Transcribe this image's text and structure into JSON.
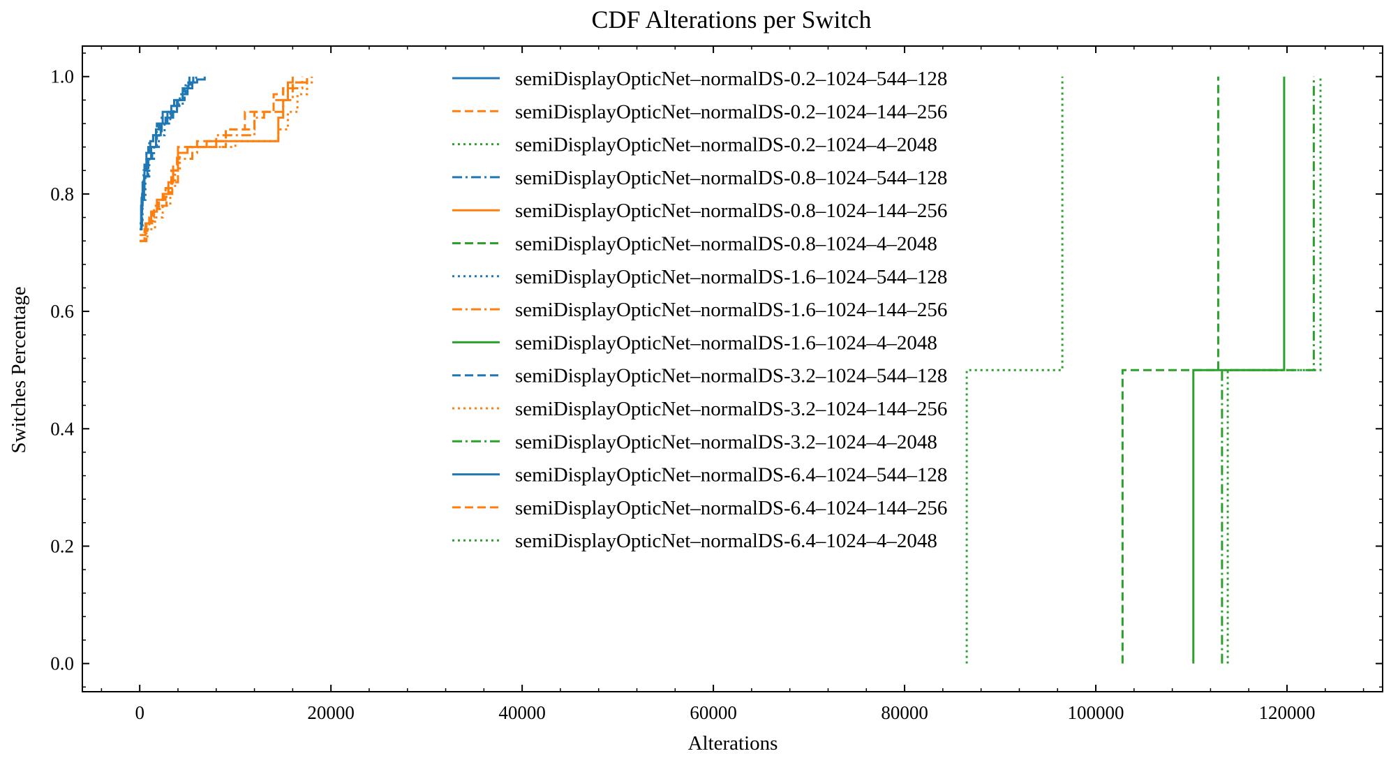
{
  "chart_data": {
    "type": "line",
    "title": "CDF Alterations per Switch",
    "xlabel": "Alterations",
    "ylabel": "Switches Percentage",
    "xlim": [
      -6000,
      130000
    ],
    "ylim": [
      -0.048,
      1.052
    ],
    "xticks": [
      0,
      20000,
      40000,
      60000,
      80000,
      100000,
      120000
    ],
    "xtick_labels": [
      "0",
      "20000",
      "40000",
      "60000",
      "80000",
      "100000",
      "120000"
    ],
    "yticks": [
      0.0,
      0.2,
      0.4,
      0.6,
      0.8,
      1.0
    ],
    "ytick_labels": [
      "0.0",
      "0.2",
      "0.4",
      "0.6",
      "0.8",
      "1.0"
    ],
    "grid": false,
    "legend_position": "top-center",
    "colors": {
      "blue": "#1f77b4",
      "orange": "#ff7f0e",
      "green": "#2ca02c"
    },
    "series": [
      {
        "name": "semiDisplayOpticNet–normalDS-0.2–1024–544–128",
        "color": "#1f77b4",
        "style": "solid",
        "x": [
          0,
          150,
          300,
          500,
          700,
          900,
          1100,
          1400,
          1700,
          2000,
          2400,
          2800,
          3300,
          4000,
          4500,
          5000,
          5500,
          6000,
          6800
        ],
        "y": [
          0.74,
          0.78,
          0.82,
          0.85,
          0.87,
          0.88,
          0.89,
          0.9,
          0.91,
          0.92,
          0.94,
          0.94,
          0.95,
          0.96,
          0.97,
          0.98,
          0.99,
          0.995,
          1.0
        ]
      },
      {
        "name": "semiDisplayOpticNet–normalDS-0.2–1024–144–256",
        "color": "#ff7f0e",
        "style": "dashed",
        "x": [
          0,
          500,
          1000,
          1500,
          2000,
          2500,
          3000,
          3500,
          4000,
          6000,
          9000,
          11000,
          14000,
          15000,
          16000,
          17000
        ],
        "y": [
          0.72,
          0.74,
          0.76,
          0.78,
          0.79,
          0.8,
          0.82,
          0.85,
          0.88,
          0.89,
          0.91,
          0.94,
          0.96,
          0.98,
          0.99,
          1.0
        ]
      },
      {
        "name": "semiDisplayOpticNet–normalDS-0.2–1024–4–2048",
        "color": "#2ca02c",
        "style": "dotted",
        "x": [
          86500,
          86500,
          96500,
          96500
        ],
        "y": [
          0.0,
          0.5,
          0.5,
          1.0
        ]
      },
      {
        "name": "semiDisplayOpticNet–normalDS-0.8–1024–544–128",
        "color": "#1f77b4",
        "style": "dashdot",
        "x": [
          0,
          200,
          400,
          700,
          1000,
          1400,
          1800,
          2300,
          2900,
          3600,
          4200,
          4800,
          5200
        ],
        "y": [
          0.75,
          0.8,
          0.84,
          0.87,
          0.89,
          0.9,
          0.92,
          0.93,
          0.94,
          0.96,
          0.97,
          0.99,
          1.0
        ]
      },
      {
        "name": "semiDisplayOpticNet–normalDS-0.8–1024–144–256",
        "color": "#ff7f0e",
        "style": "solid",
        "x": [
          0,
          600,
          1200,
          1800,
          2400,
          3000,
          3500,
          4000,
          5000,
          7000,
          12000,
          14500,
          15000,
          15500,
          16000
        ],
        "y": [
          0.73,
          0.75,
          0.77,
          0.79,
          0.8,
          0.82,
          0.84,
          0.87,
          0.88,
          0.89,
          0.89,
          0.93,
          0.96,
          0.99,
          1.0
        ]
      },
      {
        "name": "semiDisplayOpticNet–normalDS-0.8–1024–4–2048",
        "color": "#2ca02c",
        "style": "dashed",
        "x": [
          102800,
          102800,
          112800,
          112800
        ],
        "y": [
          0.0,
          0.5,
          0.5,
          1.0
        ]
      },
      {
        "name": "semiDisplayOpticNet–normalDS-1.6–1024–544–128",
        "color": "#1f77b4",
        "style": "dotted",
        "x": [
          0,
          300,
          600,
          1000,
          1500,
          2000,
          2600,
          3200,
          3900,
          4500,
          5000,
          5600
        ],
        "y": [
          0.74,
          0.79,
          0.83,
          0.86,
          0.88,
          0.9,
          0.92,
          0.94,
          0.95,
          0.97,
          0.99,
          1.0
        ]
      },
      {
        "name": "semiDisplayOpticNet–normalDS-1.6–1024–144–256",
        "color": "#ff7f0e",
        "style": "dashdot",
        "x": [
          0,
          700,
          1400,
          2100,
          2800,
          3400,
          4000,
          5500,
          8000,
          12000,
          13000,
          15000,
          16000,
          17000,
          17500
        ],
        "y": [
          0.72,
          0.75,
          0.77,
          0.78,
          0.8,
          0.82,
          0.86,
          0.88,
          0.9,
          0.93,
          0.94,
          0.96,
          0.98,
          0.99,
          1.0
        ]
      },
      {
        "name": "semiDisplayOpticNet–normalDS-1.6–1024–4–2048",
        "color": "#2ca02c",
        "style": "solid",
        "x": [
          110200,
          110200,
          119700,
          119700
        ],
        "y": [
          0.0,
          0.5,
          0.5,
          1.0
        ]
      },
      {
        "name": "semiDisplayOpticNet–normalDS-3.2–1024–544–128",
        "color": "#1f77b4",
        "style": "dashed",
        "x": [
          0,
          250,
          500,
          900,
          1300,
          1800,
          2300,
          2900,
          3500,
          4100,
          4700,
          5300,
          5900
        ],
        "y": [
          0.75,
          0.8,
          0.83,
          0.86,
          0.88,
          0.9,
          0.92,
          0.93,
          0.95,
          0.96,
          0.98,
          0.99,
          1.0
        ]
      },
      {
        "name": "semiDisplayOpticNet–normalDS-3.2–1024–144–256",
        "color": "#ff7f0e",
        "style": "dotted",
        "x": [
          0,
          800,
          1600,
          2400,
          3200,
          3700,
          4200,
          6000,
          10000,
          13000,
          14500,
          15500,
          16500,
          17500,
          18000
        ],
        "y": [
          0.72,
          0.74,
          0.76,
          0.78,
          0.81,
          0.84,
          0.87,
          0.88,
          0.89,
          0.89,
          0.91,
          0.94,
          0.97,
          0.99,
          1.0
        ]
      },
      {
        "name": "semiDisplayOpticNet–normalDS-3.2–1024–4–2048",
        "color": "#2ca02c",
        "style": "dashdot",
        "x": [
          113200,
          113200,
          122800,
          122800
        ],
        "y": [
          0.0,
          0.5,
          0.5,
          1.0
        ]
      },
      {
        "name": "semiDisplayOpticNet–normalDS-6.4–1024–544–128",
        "color": "#1f77b4",
        "style": "solid",
        "x": [
          0,
          200,
          450,
          800,
          1200,
          1700,
          2200,
          2700,
          3300,
          3900,
          4500,
          5100,
          5600
        ],
        "y": [
          0.74,
          0.79,
          0.83,
          0.86,
          0.88,
          0.9,
          0.92,
          0.93,
          0.94,
          0.96,
          0.98,
          0.99,
          1.0
        ]
      },
      {
        "name": "semiDisplayOpticNet–normalDS-6.4–1024–144–256",
        "color": "#ff7f0e",
        "style": "dashed",
        "x": [
          0,
          600,
          1300,
          2000,
          2700,
          3300,
          3900,
          5000,
          9000,
          12000,
          14000,
          15000,
          16000,
          17000
        ],
        "y": [
          0.72,
          0.75,
          0.77,
          0.79,
          0.81,
          0.84,
          0.87,
          0.88,
          0.91,
          0.94,
          0.97,
          0.98,
          0.99,
          1.0
        ]
      },
      {
        "name": "semiDisplayOpticNet–normalDS-6.4–1024–4–2048",
        "color": "#2ca02c",
        "style": "dotted",
        "x": [
          113800,
          113800,
          123500,
          123500
        ],
        "y": [
          0.0,
          0.5,
          0.5,
          1.0
        ]
      }
    ]
  }
}
